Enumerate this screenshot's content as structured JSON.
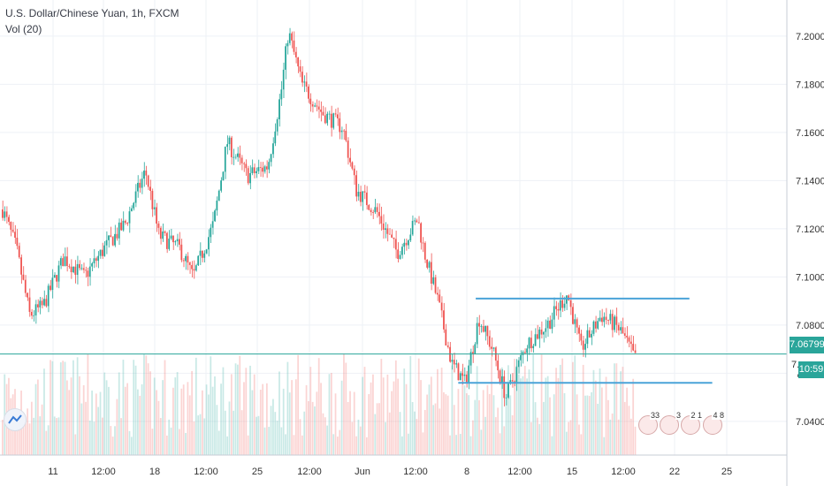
{
  "legend": {
    "title": "U.S. Dollar/Chinese Yuan, 1h, FXCM",
    "volume": "Vol (20)"
  },
  "price_tags": {
    "last_price": "7.06799",
    "countdown": "10:59",
    "countdown_partial": "7."
  },
  "events": [
    {
      "count": "33"
    },
    {
      "count": "3"
    },
    {
      "count": "2 1"
    },
    {
      "count": "4 8"
    }
  ],
  "colors": {
    "up": "#26a69a",
    "down": "#ef5350",
    "trendline": "#4aa3d8",
    "price_line": "#2aa59a",
    "grid": "#eef1f6"
  },
  "chart_data": {
    "type": "candlestick",
    "x_tick_labels": [
      "11",
      "12:00",
      "18",
      "12:00",
      "25",
      "12:00",
      "Jun",
      "12:00",
      "8",
      "12:00",
      "15",
      "12:00",
      "22",
      "25"
    ],
    "y_tick_labels": [
      "7.20000",
      "7.18000",
      "7.16000",
      "7.14000",
      "7.12000",
      "7.10000",
      "7.08000",
      "7.06000",
      "7.04000"
    ],
    "ylim": [
      7.026,
      7.215
    ],
    "grid": true,
    "price_path": [
      [
        0,
        7.128
      ],
      [
        0.02,
        7.112
      ],
      [
        0.04,
        7.084
      ],
      [
        0.06,
        7.088
      ],
      [
        0.09,
        7.108
      ],
      [
        0.12,
        7.1
      ],
      [
        0.15,
        7.112
      ],
      [
        0.18,
        7.122
      ],
      [
        0.21,
        7.144
      ],
      [
        0.23,
        7.117
      ],
      [
        0.26,
        7.112
      ],
      [
        0.28,
        7.1
      ],
      [
        0.31,
        7.122
      ],
      [
        0.33,
        7.156
      ],
      [
        0.36,
        7.142
      ],
      [
        0.39,
        7.146
      ],
      [
        0.41,
        7.178
      ],
      [
        0.42,
        7.202
      ],
      [
        0.44,
        7.18
      ],
      [
        0.47,
        7.168
      ],
      [
        0.5,
        7.162
      ],
      [
        0.52,
        7.136
      ],
      [
        0.55,
        7.127
      ],
      [
        0.58,
        7.11
      ],
      [
        0.61,
        7.124
      ],
      [
        0.62,
        7.11
      ],
      [
        0.64,
        7.09
      ],
      [
        0.66,
        7.064
      ],
      [
        0.68,
        7.056
      ],
      [
        0.7,
        7.083
      ],
      [
        0.72,
        7.07
      ],
      [
        0.74,
        7.05
      ],
      [
        0.77,
        7.072
      ],
      [
        0.8,
        7.08
      ],
      [
        0.83,
        7.093
      ],
      [
        0.85,
        7.07
      ],
      [
        0.88,
        7.084
      ],
      [
        0.9,
        7.08
      ],
      [
        0.91,
        7.077
      ],
      [
        0.93,
        7.066
      ]
    ],
    "last_price": 7.06799,
    "trendlines": [
      {
        "x1": 0.708,
        "x2": 1.026,
        "y1": 7.091,
        "y2": 7.091
      },
      {
        "x1": 0.682,
        "x2": 1.06,
        "y1": 7.056,
        "y2": 7.056
      }
    ]
  }
}
